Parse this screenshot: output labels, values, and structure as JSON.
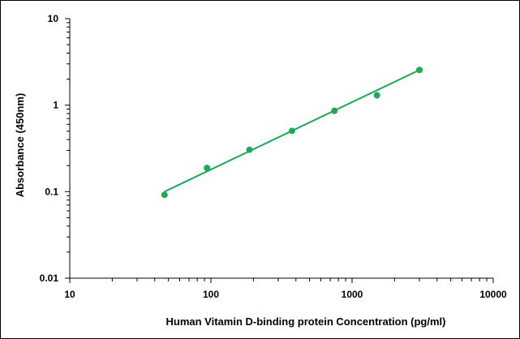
{
  "chart_data": {
    "type": "scatter",
    "title": "",
    "xlabel": "Human Vitamin D-binding protein Concentration (pg/ml)",
    "ylabel": "Absorbance (450nm)",
    "x_scale": "log",
    "y_scale": "log",
    "xlim": [
      10,
      10000
    ],
    "ylim": [
      0.01,
      10
    ],
    "x_ticks": [
      "10",
      "100",
      "1000",
      "10000"
    ],
    "y_ticks": [
      "0.01",
      "0.1",
      "1",
      "10"
    ],
    "grid": false,
    "legend": "none",
    "series": [
      {
        "x": [
          46.875,
          93.75,
          187.5,
          375,
          750,
          1500,
          3000
        ],
        "y": [
          0.092,
          0.188,
          0.305,
          0.505,
          0.86,
          1.3,
          2.55
        ]
      }
    ],
    "trendline": {
      "type": "power",
      "x": [
        46.875,
        3000
      ],
      "y": [
        0.1,
        2.55
      ]
    },
    "colors": {
      "series": "#1daa55",
      "axis": "#000000"
    }
  }
}
